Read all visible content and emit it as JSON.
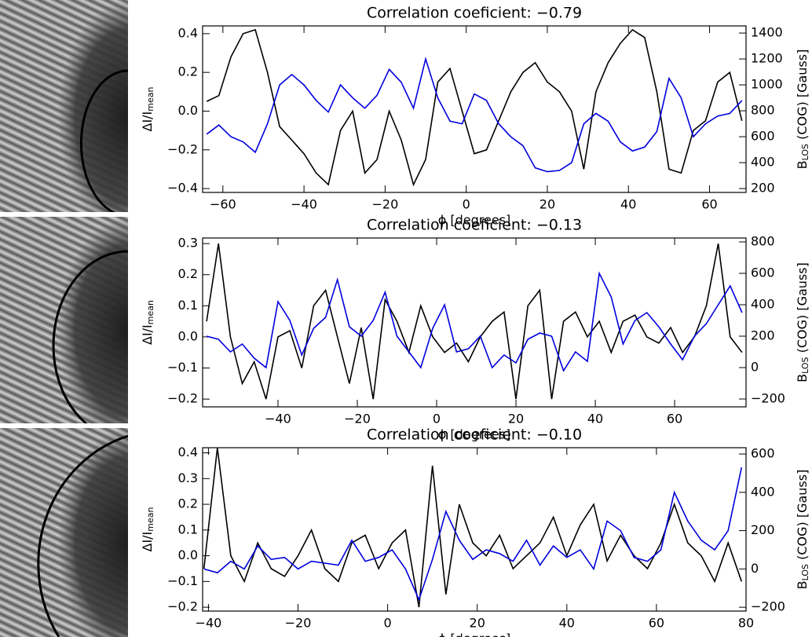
{
  "chart_data": [
    {
      "type": "line",
      "title": "Correlation coeficient: −0.79",
      "xlabel": "ϕ [degrees]",
      "ylabel": {
        "main": "ΔI/I",
        "sub": "mean"
      },
      "y2label": {
        "main": "B",
        "sub": "LOS",
        "rest": " (COG) [Gauss]"
      },
      "xlim": [
        -65,
        69
      ],
      "ylim": [
        -0.42,
        0.44
      ],
      "y2lim": [
        170,
        1455
      ],
      "xticks": [
        {
          "value": -60,
          "label": "−60"
        },
        {
          "value": -40,
          "label": "−40"
        },
        {
          "value": -20,
          "label": "−20"
        },
        0,
        20,
        40,
        60
      ],
      "yticks": [
        {
          "value": -0.4,
          "label": "−0.4"
        },
        {
          "value": -0.2,
          "label": "−0.2"
        },
        {
          "value": 0,
          "label": "0.0"
        },
        0.2,
        0.4
      ],
      "y2ticks": [
        200,
        400,
        600,
        800,
        1000,
        1200,
        1400
      ],
      "x": [
        -64,
        -61,
        -58,
        -55,
        -52,
        -49,
        -46,
        -43,
        -40,
        -37,
        -34,
        -31,
        -28,
        -25,
        -22,
        -19,
        -16,
        -13,
        -10,
        -7,
        -4,
        -1,
        2,
        5,
        8,
        11,
        14,
        17,
        20,
        23,
        26,
        29,
        32,
        35,
        38,
        41,
        44,
        47,
        50,
        53,
        56,
        59,
        62,
        65,
        68
      ],
      "series": [
        {
          "color": "#000000",
          "axis": "y",
          "values": [
            0.05,
            0.08,
            0.28,
            0.4,
            0.42,
            0.2,
            -0.08,
            -0.15,
            -0.22,
            -0.32,
            -0.38,
            -0.1,
            0.0,
            -0.32,
            -0.25,
            0.0,
            -0.15,
            -0.38,
            -0.25,
            0.15,
            0.22,
            0.0,
            -0.22,
            -0.2,
            -0.05,
            0.1,
            0.2,
            0.25,
            0.15,
            0.1,
            0.0,
            -0.3,
            0.1,
            0.25,
            0.35,
            0.42,
            0.38,
            0.1,
            -0.3,
            -0.32,
            -0.1,
            -0.05,
            0.15,
            0.2,
            -0.05
          ]
        },
        {
          "color": "#0000dd",
          "axis": "y2",
          "values": [
            620,
            690,
            600,
            560,
            480,
            700,
            1000,
            1080,
            1000,
            880,
            790,
            1000,
            900,
            820,
            920,
            1120,
            1020,
            820,
            1200,
            900,
            720,
            700,
            930,
            880,
            700,
            600,
            530,
            360,
            330,
            340,
            400,
            700,
            780,
            720,
            560,
            490,
            520,
            640,
            1050,
            900,
            600,
            700,
            760,
            780,
            880
          ]
        }
      ]
    },
    {
      "type": "line",
      "title": "Correlation coeficient: −0.13",
      "xlabel": "ϕ [degrees]",
      "ylabel": {
        "main": "ΔI/I",
        "sub": "mean"
      },
      "y2label": {
        "main": "B",
        "sub": "LOS",
        "rest": " (COG) [Gauss]"
      },
      "xlim": [
        -59,
        78
      ],
      "ylim": [
        -0.225,
        0.318
      ],
      "y2lim": [
        -250,
        825
      ],
      "xticks": [
        {
          "value": -40,
          "label": "−40"
        },
        {
          "value": -20,
          "label": "−20"
        },
        0,
        20,
        40,
        60
      ],
      "yticks": [
        {
          "value": -0.2,
          "label": "−0.2"
        },
        {
          "value": -0.1,
          "label": "−0.1"
        },
        {
          "value": 0,
          "label": "0.0"
        },
        0.1,
        0.2,
        0.3
      ],
      "y2ticks": [
        {
          "value": -200,
          "label": "−200"
        },
        0,
        200,
        400,
        600,
        800
      ],
      "x": [
        -58,
        -55,
        -52,
        -49,
        -46,
        -43,
        -40,
        -37,
        -34,
        -31,
        -28,
        -25,
        -22,
        -19,
        -16,
        -13,
        -10,
        -7,
        -4,
        -1,
        2,
        5,
        8,
        11,
        14,
        17,
        20,
        23,
        26,
        29,
        32,
        35,
        38,
        41,
        44,
        47,
        50,
        53,
        56,
        59,
        62,
        65,
        68,
        71,
        74,
        77
      ],
      "series": [
        {
          "color": "#000000",
          "axis": "y",
          "values": [
            0.05,
            0.3,
            0.0,
            -0.15,
            -0.08,
            -0.2,
            0.0,
            0.02,
            -0.1,
            0.1,
            0.15,
            0.0,
            -0.15,
            0.03,
            -0.2,
            0.12,
            0.05,
            -0.05,
            0.1,
            0.0,
            -0.05,
            -0.02,
            -0.08,
            0.0,
            0.05,
            0.08,
            -0.2,
            0.1,
            0.15,
            -0.2,
            0.05,
            0.08,
            0.0,
            0.05,
            -0.05,
            0.05,
            0.07,
            0.0,
            -0.02,
            0.03,
            -0.05,
            0.0,
            0.1,
            0.3,
            0.0,
            -0.05
          ]
        },
        {
          "color": "#0000dd",
          "axis": "y2",
          "values": [
            200,
            180,
            100,
            150,
            60,
            0,
            420,
            300,
            80,
            250,
            320,
            560,
            260,
            200,
            300,
            480,
            200,
            100,
            0,
            250,
            400,
            100,
            120,
            200,
            0,
            80,
            30,
            180,
            220,
            200,
            -20,
            100,
            40,
            600,
            450,
            150,
            300,
            350,
            260,
            150,
            50,
            200,
            280,
            400,
            520,
            350
          ]
        }
      ]
    },
    {
      "type": "line",
      "title": "Correlation coeficient: −0.10",
      "xlabel": "ϕ [degrees]",
      "ylabel": {
        "main": "ΔI/I",
        "sub": "mean"
      },
      "y2label": {
        "main": "B",
        "sub": "LOS",
        "rest": " (COG) [Gauss]"
      },
      "xlim": [
        -41.3,
        80
      ],
      "ylim": [
        -0.215,
        0.42
      ],
      "y2lim": [
        -220,
        633
      ],
      "xticks": [
        {
          "value": -40,
          "label": "−40"
        },
        {
          "value": -20,
          "label": "−20"
        },
        0,
        20,
        40,
        60,
        80
      ],
      "yticks": [
        {
          "value": -0.2,
          "label": "−0.2"
        },
        {
          "value": -0.1,
          "label": "−0.1"
        },
        {
          "value": 0,
          "label": "0.0"
        },
        0.1,
        0.2,
        0.3,
        0.4
      ],
      "y2ticks": [
        {
          "value": -200,
          "label": "−200"
        },
        0,
        200,
        400,
        600
      ],
      "x": [
        -41,
        -38,
        -35,
        -32,
        -29,
        -26,
        -23,
        -20,
        -17,
        -14,
        -11,
        -8,
        -5,
        -2,
        1,
        4,
        7,
        10,
        13,
        16,
        19,
        22,
        25,
        28,
        31,
        34,
        37,
        40,
        43,
        46,
        49,
        52,
        55,
        58,
        61,
        64,
        67,
        70,
        73,
        76,
        79
      ],
      "series": [
        {
          "color": "#000000",
          "axis": "y",
          "values": [
            -0.05,
            0.42,
            0.0,
            -0.1,
            0.05,
            -0.05,
            -0.08,
            0.0,
            0.1,
            -0.05,
            -0.1,
            0.05,
            0.08,
            -0.05,
            0.05,
            0.1,
            -0.2,
            0.35,
            -0.15,
            0.2,
            0.05,
            0.0,
            0.08,
            -0.05,
            0.0,
            0.05,
            0.15,
            0.0,
            0.12,
            0.2,
            -0.02,
            0.08,
            0.0,
            -0.05,
            0.05,
            0.2,
            0.05,
            0.0,
            -0.1,
            0.05,
            -0.1
          ]
        },
        {
          "color": "#0000dd",
          "axis": "y2",
          "values": [
            0,
            -20,
            40,
            0,
            120,
            50,
            60,
            0,
            40,
            30,
            20,
            150,
            40,
            60,
            100,
            0,
            -160,
            50,
            300,
            150,
            50,
            100,
            80,
            40,
            150,
            20,
            120,
            60,
            100,
            0,
            250,
            200,
            60,
            40,
            100,
            400,
            250,
            150,
            100,
            200,
            530
          ]
        }
      ]
    }
  ]
}
